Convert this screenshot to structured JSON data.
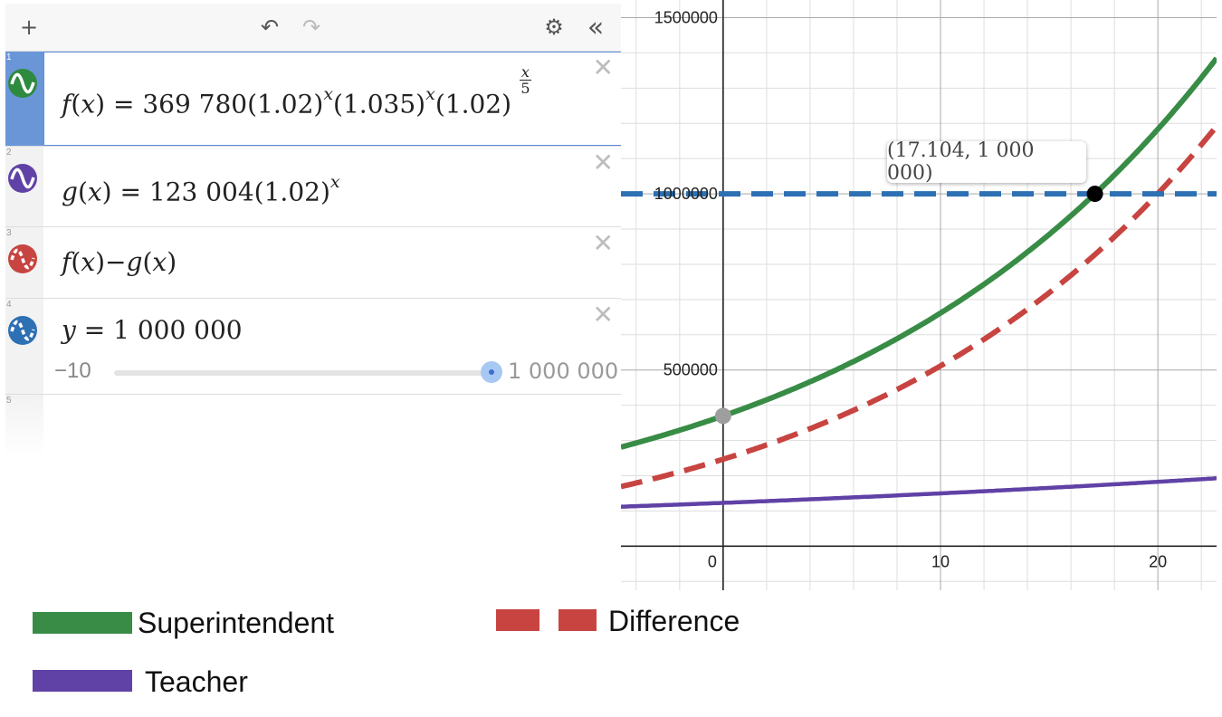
{
  "toolbar": {
    "add": "+",
    "undo": "↶",
    "redo": "↷",
    "settings": "⚙",
    "collapse": "«"
  },
  "expressions": [
    {
      "num": "1",
      "color": "#2d8a3e",
      "f_name": "f",
      "f_var": "x",
      "eq": "=",
      "coef": "369 780",
      "b1": "1.02",
      "b2": "1.035",
      "b3": "1.02",
      "exp_x": "x",
      "frac_num": "x",
      "frac_den": "5"
    },
    {
      "num": "2",
      "color": "#6042a6",
      "f_name": "g",
      "f_var": "x",
      "eq": "=",
      "coef": "123 004",
      "b1": "1.02",
      "exp_x": "x"
    },
    {
      "num": "3",
      "color": "#c74440",
      "f1": "f",
      "v1": "x",
      "op": "−",
      "f2": "g",
      "v2": "x"
    },
    {
      "num": "4",
      "color": "#2d70b3",
      "lhs": "y",
      "eq": "=",
      "rhs": "1 000 000",
      "slider_min": "−10",
      "slider_max": "1 000 000"
    },
    {
      "num": "5"
    }
  ],
  "close_label": "✕",
  "tooltip": "(17.104, 1 000 000)",
  "chart_data": {
    "type": "line",
    "x_ticks": [
      "0",
      "10",
      "20"
    ],
    "y_ticks": [
      "500000",
      "1000000",
      "1500000"
    ],
    "xlim": [
      -4.7,
      22.7
    ],
    "ylim": [
      -125000,
      1550000
    ],
    "grid": true,
    "series": [
      {
        "name": "Superintendent",
        "color": "#388c46",
        "style": "solid",
        "expr": "369780*1.02^x*1.035^x*1.02^(x/5)"
      },
      {
        "name": "Teacher",
        "color": "#6042a6",
        "style": "solid",
        "expr": "123004*1.02^x"
      },
      {
        "name": "Difference",
        "color": "#c74440",
        "style": "dashed",
        "expr": "f(x)-g(x)"
      },
      {
        "name": "",
        "color": "#2d70b3",
        "style": "dashed",
        "expr": "y=1000000"
      }
    ],
    "points": [
      {
        "x": 0,
        "y": 369780,
        "color": "#9e9e9e"
      },
      {
        "x": 17.104,
        "y": 1000000,
        "color": "#000000"
      }
    ]
  },
  "legend": {
    "superintendent": {
      "label": "Superintendent",
      "color": "#388c46"
    },
    "teacher": {
      "label": "Teacher",
      "color": "#6042a6"
    },
    "difference": {
      "label": "Difference",
      "color": "#c74440"
    }
  }
}
